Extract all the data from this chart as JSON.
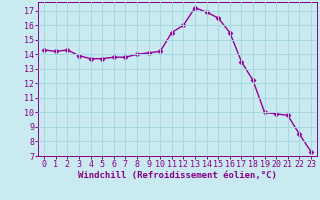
{
  "x": [
    0,
    1,
    2,
    3,
    4,
    5,
    6,
    7,
    8,
    9,
    10,
    11,
    12,
    13,
    14,
    15,
    16,
    17,
    18,
    19,
    20,
    21,
    22,
    23
  ],
  "y": [
    14.3,
    14.2,
    14.3,
    13.9,
    13.7,
    13.7,
    13.8,
    13.8,
    14.0,
    14.1,
    14.2,
    15.5,
    16.0,
    17.2,
    16.9,
    16.5,
    15.5,
    13.5,
    12.2,
    10.0,
    9.9,
    9.8,
    8.5,
    7.3
  ],
  "line_color": "#990099",
  "marker": "D",
  "marker_size": 2.5,
  "bg_color": "#c8eaf0",
  "grid_color": "#a8d8e0",
  "xlabel": "Windchill (Refroidissement éolien,°C)",
  "xlabel_color": "#880088",
  "tick_color": "#880088",
  "ylim": [
    7,
    17.6
  ],
  "xlim": [
    -0.5,
    23.5
  ],
  "yticks": [
    7,
    8,
    9,
    10,
    11,
    12,
    13,
    14,
    15,
    16,
    17
  ],
  "xticks": [
    0,
    1,
    2,
    3,
    4,
    5,
    6,
    7,
    8,
    9,
    10,
    11,
    12,
    13,
    14,
    15,
    16,
    17,
    18,
    19,
    20,
    21,
    22,
    23
  ],
  "tick_fontsize": 6,
  "xlabel_fontsize": 6.5,
  "linewidth": 1.0
}
